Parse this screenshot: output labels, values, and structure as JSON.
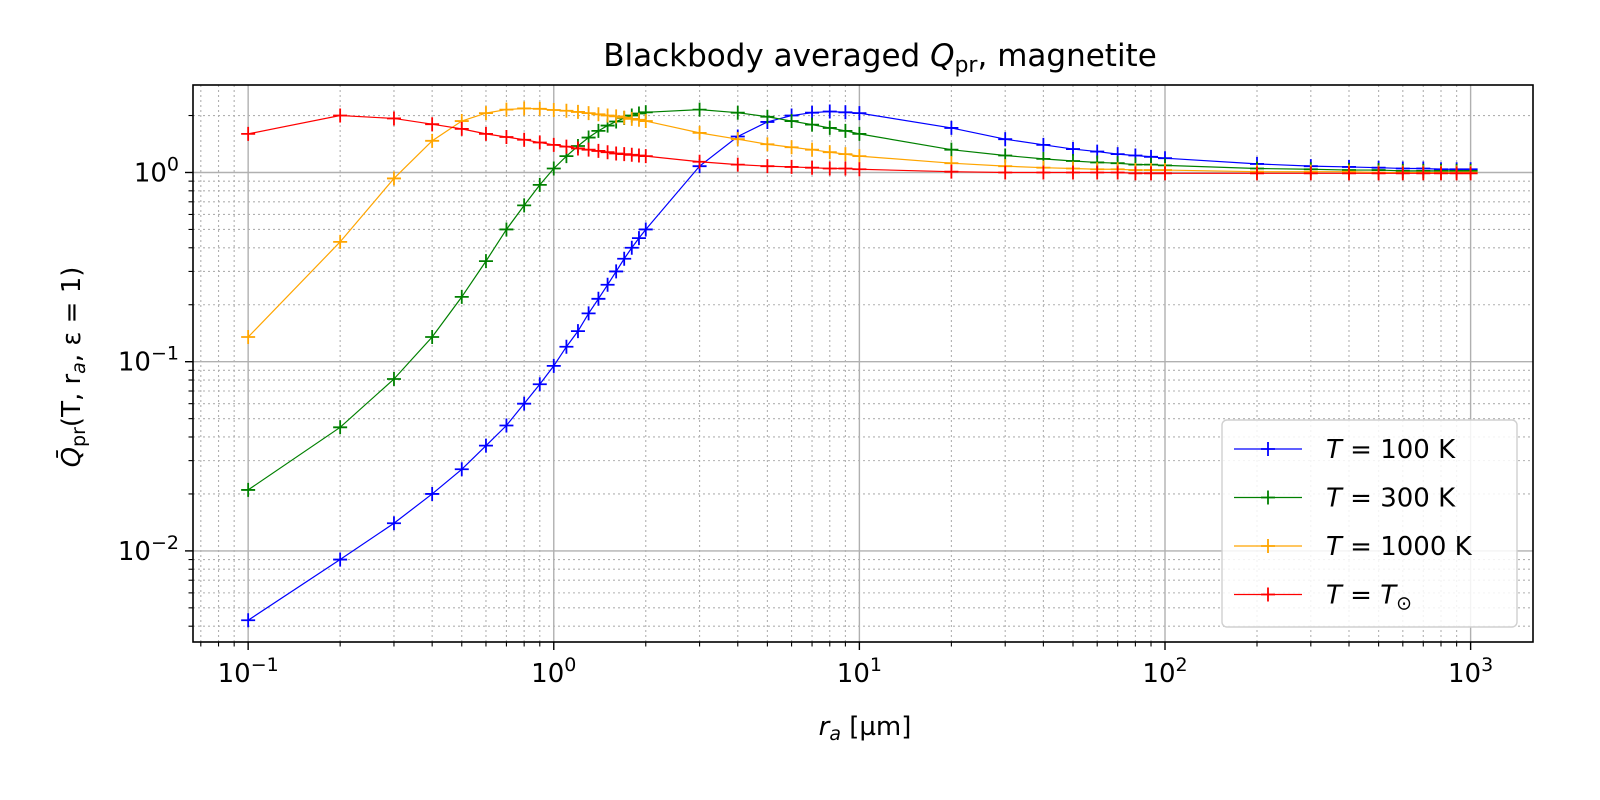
{
  "chart_data": {
    "type": "line",
    "title_prefix": "Blackbody averaged ",
    "title_symbol": "Q",
    "title_subscript": "pr",
    "title_suffix": ", magnetite",
    "xlabel_symbol": "r",
    "xlabel_subscript": "a",
    "xlabel_unit": " [µm]",
    "ylabel_symbol": "Q̄",
    "ylabel_subscript": "pr",
    "ylabel_args": "(T, r",
    "ylabel_args_sub": "a",
    "ylabel_args_tail": ", ε = 1)",
    "x_scale": "log",
    "y_scale": "log",
    "xlim": [
      0.066,
      1600
    ],
    "ylim": [
      0.0033,
      2.9
    ],
    "x_ticks": [
      {
        "value": 0.1,
        "base": "10",
        "exp": "−1"
      },
      {
        "value": 1,
        "base": "10",
        "exp": "0"
      },
      {
        "value": 10,
        "base": "10",
        "exp": "1"
      },
      {
        "value": 100,
        "base": "10",
        "exp": "2"
      },
      {
        "value": 1000,
        "base": "10",
        "exp": "3"
      }
    ],
    "y_ticks": [
      {
        "value": 0.01,
        "base": "10",
        "exp": "−2"
      },
      {
        "value": 0.1,
        "base": "10",
        "exp": "−1"
      },
      {
        "value": 1,
        "base": "10",
        "exp": "0"
      }
    ],
    "grid": true,
    "legend_position": "lower right",
    "series": [
      {
        "name": "T = 100 K",
        "label_parts": {
          "var": "T",
          "rest": " = 100 K"
        },
        "color": "#0000ff",
        "x": [
          0.1,
          0.2,
          0.3,
          0.4,
          0.5,
          0.6,
          0.7,
          0.8,
          0.9,
          1.0,
          1.1,
          1.2,
          1.3,
          1.4,
          1.5,
          1.6,
          1.7,
          1.8,
          1.9,
          2.0,
          3,
          4,
          5,
          6,
          7,
          8,
          9,
          10,
          20,
          30,
          40,
          50,
          60,
          70,
          80,
          90,
          100,
          200,
          300,
          400,
          500,
          600,
          700,
          800,
          900,
          1000
        ],
        "y": [
          0.0043,
          0.009,
          0.014,
          0.02,
          0.027,
          0.036,
          0.046,
          0.06,
          0.076,
          0.095,
          0.12,
          0.145,
          0.18,
          0.215,
          0.255,
          0.3,
          0.35,
          0.4,
          0.45,
          0.5,
          1.08,
          1.55,
          1.85,
          2.0,
          2.07,
          2.1,
          2.08,
          2.06,
          1.72,
          1.5,
          1.4,
          1.33,
          1.29,
          1.25,
          1.23,
          1.21,
          1.19,
          1.11,
          1.08,
          1.07,
          1.06,
          1.05,
          1.05,
          1.04,
          1.04,
          1.04
        ]
      },
      {
        "name": "T = 300 K",
        "label_parts": {
          "var": "T",
          "rest": " = 300 K"
        },
        "color": "#008000",
        "x": [
          0.1,
          0.2,
          0.3,
          0.4,
          0.5,
          0.6,
          0.7,
          0.8,
          0.9,
          1.0,
          1.1,
          1.2,
          1.3,
          1.4,
          1.5,
          1.6,
          1.7,
          1.8,
          1.9,
          2.0,
          3,
          4,
          5,
          6,
          7,
          8,
          9,
          10,
          20,
          30,
          40,
          50,
          60,
          70,
          80,
          90,
          100,
          200,
          300,
          400,
          500,
          600,
          700,
          800,
          900,
          1000
        ],
        "y": [
          0.021,
          0.045,
          0.081,
          0.135,
          0.22,
          0.34,
          0.5,
          0.67,
          0.86,
          1.05,
          1.22,
          1.38,
          1.53,
          1.66,
          1.77,
          1.86,
          1.94,
          2.0,
          2.05,
          2.08,
          2.15,
          2.07,
          1.97,
          1.87,
          1.79,
          1.72,
          1.66,
          1.6,
          1.32,
          1.23,
          1.18,
          1.15,
          1.13,
          1.12,
          1.1,
          1.1,
          1.09,
          1.05,
          1.04,
          1.03,
          1.03,
          1.02,
          1.02,
          1.02,
          1.02,
          1.02
        ]
      },
      {
        "name": "T = 1000 K",
        "label_parts": {
          "var": "T",
          "rest": " = 1000 K"
        },
        "color": "#ffa500",
        "x": [
          0.1,
          0.2,
          0.3,
          0.4,
          0.5,
          0.6,
          0.7,
          0.8,
          0.9,
          1.0,
          1.1,
          1.2,
          1.3,
          1.4,
          1.5,
          1.6,
          1.7,
          1.8,
          1.9,
          2.0,
          3,
          4,
          5,
          6,
          7,
          8,
          9,
          10,
          20,
          30,
          40,
          50,
          60,
          70,
          80,
          90,
          100,
          200,
          300,
          400,
          500,
          600,
          700,
          800,
          900,
          1000
        ],
        "y": [
          0.135,
          0.43,
          0.93,
          1.47,
          1.87,
          2.06,
          2.15,
          2.18,
          2.17,
          2.14,
          2.12,
          2.09,
          2.06,
          2.03,
          2.0,
          1.98,
          1.95,
          1.92,
          1.9,
          1.87,
          1.62,
          1.5,
          1.41,
          1.36,
          1.32,
          1.28,
          1.25,
          1.22,
          1.12,
          1.08,
          1.06,
          1.05,
          1.04,
          1.04,
          1.03,
          1.03,
          1.03,
          1.01,
          1.01,
          1.01,
          1.0,
          1.0,
          1.0,
          1.0,
          1.0,
          1.0
        ]
      },
      {
        "name": "T = T⊙",
        "label_parts": {
          "var": "T",
          "rest": " = ",
          "var2": "T",
          "sub": "⊙"
        },
        "color": "#ff0000",
        "x": [
          0.1,
          0.2,
          0.3,
          0.4,
          0.5,
          0.6,
          0.7,
          0.8,
          0.9,
          1.0,
          1.1,
          1.2,
          1.3,
          1.4,
          1.5,
          1.6,
          1.7,
          1.8,
          1.9,
          2.0,
          3,
          4,
          5,
          6,
          7,
          8,
          9,
          10,
          20,
          30,
          40,
          50,
          60,
          70,
          80,
          90,
          100,
          200,
          300,
          400,
          500,
          600,
          700,
          800,
          900,
          1000
        ],
        "y": [
          1.6,
          2.0,
          1.93,
          1.8,
          1.7,
          1.6,
          1.54,
          1.49,
          1.44,
          1.4,
          1.37,
          1.34,
          1.32,
          1.3,
          1.28,
          1.26,
          1.25,
          1.24,
          1.23,
          1.22,
          1.14,
          1.1,
          1.08,
          1.07,
          1.06,
          1.05,
          1.05,
          1.04,
          1.01,
          1.0,
          1.0,
          1.0,
          1.0,
          1.0,
          0.99,
          0.99,
          0.99,
          0.99,
          0.99,
          0.99,
          0.99,
          0.99,
          0.99,
          0.99,
          0.99,
          0.99
        ]
      }
    ]
  }
}
